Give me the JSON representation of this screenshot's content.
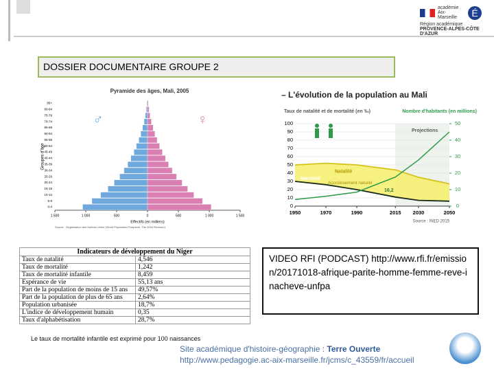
{
  "header": {
    "logo_name": "académie Aix-Marseille",
    "logo_region": "Région académique",
    "logo_region_name": "PROVENCE-ALPES-CÔTE D'AZUR"
  },
  "title": "DOSSIER DOCUMENTAIRE GROUPE 2",
  "chart_data": [
    {
      "type": "pyramid",
      "title": "Pyramide des âges, Mali, 2005",
      "y_label": "Groupes d'âge",
      "x_label": "Effectifs (en milliers)",
      "source": "Source : Organisation des Nations Unies (World Population Prospects: The 2004 Revision)",
      "categories": [
        "0-4",
        "5-9",
        "10-14",
        "15-19",
        "20-24",
        "25-29",
        "30-34",
        "35-39",
        "40-44",
        "45-49",
        "50-54",
        "55-59",
        "60-64",
        "65-69",
        "70-74",
        "75-79",
        "80-84",
        "85+"
      ],
      "series": [
        {
          "name": "♂",
          "color": "#6fa8dc",
          "values": [
            1050,
            900,
            760,
            640,
            540,
            450,
            380,
            320,
            270,
            220,
            180,
            140,
            110,
            80,
            55,
            35,
            20,
            10
          ]
        },
        {
          "name": "♀",
          "color": "#d97fb2",
          "values": [
            1030,
            890,
            750,
            650,
            560,
            470,
            400,
            340,
            290,
            240,
            195,
            155,
            120,
            90,
            62,
            40,
            24,
            12
          ]
        }
      ],
      "xlim": [
        -1500,
        1500
      ],
      "xticks": [
        {
          "value": -1500,
          "label": "1 500"
        },
        {
          "value": -1000,
          "label": "1 000"
        },
        {
          "value": -500,
          "label": "500"
        },
        0,
        {
          "value": 500,
          "label": "500"
        },
        {
          "value": 1000,
          "label": "1 000"
        },
        {
          "value": 1500,
          "label": "1 500"
        }
      ]
    },
    {
      "type": "line",
      "title": "– L'évolution de la population au Mali",
      "y_label": "Taux de natalité et de mortalité (en ‰)",
      "y2_label": "Nombre d'habitants (en millions)",
      "x": [
        1950,
        1970,
        1990,
        2015,
        2030,
        2050
      ],
      "series": [
        {
          "name": "Natalité",
          "color": "#d6c21a",
          "values": [
            50,
            52,
            50,
            44,
            35,
            27
          ]
        },
        {
          "name": "Mortalité",
          "color": "#1a2a1a",
          "values": [
            30,
            26,
            20,
            11,
            7,
            6
          ]
        },
        {
          "name": "Nombre d'habitants",
          "color": "#2e9a4a",
          "axis": "y2",
          "values": [
            4,
            6,
            8.5,
            17.6,
            28,
            45
          ]
        }
      ],
      "annotations": {
        "growth": "Accroissement naturel",
        "value": "16,2",
        "projections": "Projections",
        "source": "Source : INED 2015"
      },
      "xlim": [
        1950,
        2050
      ],
      "xticks": [
        1950,
        1970,
        1990,
        2015,
        2030,
        2050
      ],
      "ylim": [
        0,
        100
      ],
      "yticks": [
        0,
        10,
        20,
        30,
        40,
        50,
        60,
        70,
        80,
        90,
        100
      ],
      "y2lim": [
        0,
        50
      ],
      "y2ticks": [
        0,
        10,
        20,
        30,
        40,
        50
      ]
    }
  ],
  "table": {
    "title": "Indicateurs de développement du Niger",
    "rows": [
      [
        "Taux de natalité",
        "4,546"
      ],
      [
        "Taux de mortalité",
        "1,242"
      ],
      [
        "Taux de mortalité infantile",
        "8,459"
      ],
      [
        "Espérance de vie",
        "55,13 ans"
      ],
      [
        "Part de la population de moins de 15 ans",
        "49,57%"
      ],
      [
        "Part de la population de plus de 65 ans",
        "2,64%"
      ],
      [
        "Population urbanisée",
        "18,7%"
      ],
      [
        "L'indice de développement humain",
        "0,35"
      ],
      [
        "Taux d'alphabétisation",
        "28,7%"
      ]
    ]
  },
  "video": "VIDEO RFI (PODCAST) http://www.rfi.fr/emission/20171018-afrique-parite-homme-femme-reve-inacheve-unfpa",
  "footnote": "Le taux de mortalité infantile est exprimé pour 100 naissances",
  "footer": {
    "line1": "Site académique d'histoire-géographie : ",
    "site": "Terre Ouverte",
    "line2": "http://www.pedagogie.ac-aix-marseille.fr/jcms/c_43559/fr/accueil"
  }
}
